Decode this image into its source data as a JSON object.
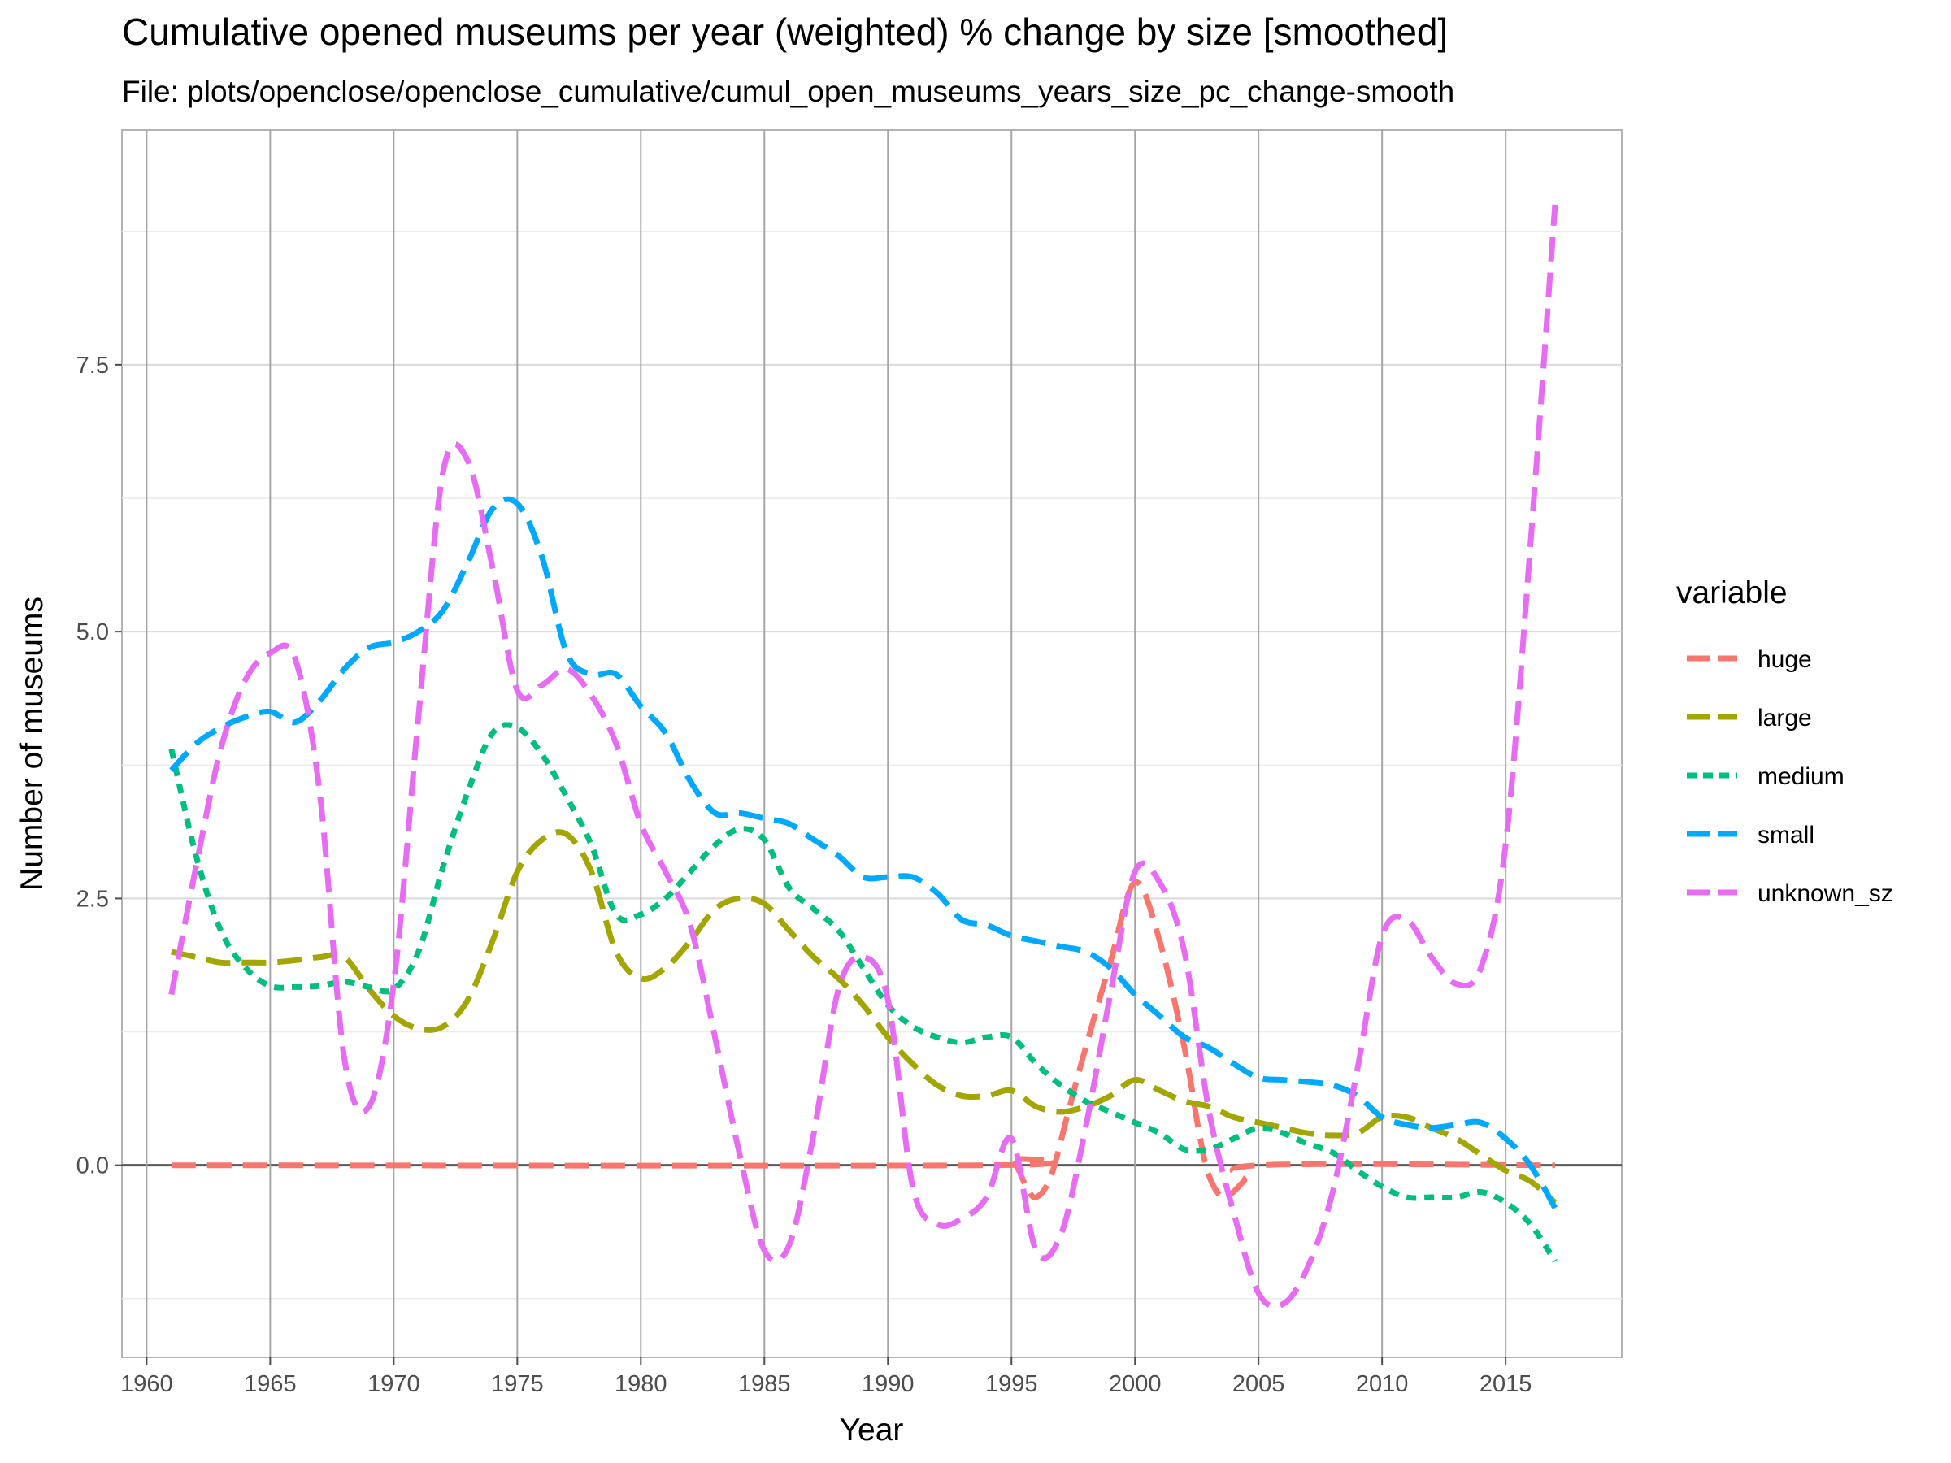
{
  "chart_data": {
    "type": "line",
    "title": "Cumulative opened museums per year (weighted) % change by size [smoothed]",
    "subtitle": "File: plots/openclose/openclose_cumulative/cumul_open_museums_years_size_pc_change-smooth",
    "xlabel": "Year",
    "ylabel": "Number of museums",
    "xlim": [
      1959,
      2019.7
    ],
    "ylim": [
      -1.8,
      9.7
    ],
    "x_ticks": [
      1960,
      1965,
      1970,
      1975,
      1980,
      1985,
      1990,
      1995,
      2000,
      2005,
      2010,
      2015
    ],
    "y_ticks": [
      0.0,
      2.5,
      5.0,
      7.5
    ],
    "y_tick_labels": [
      "0.0",
      "2.5",
      "5.0",
      "7.5"
    ],
    "grid": true,
    "legend": {
      "title": "variable",
      "position": "right"
    },
    "series": [
      {
        "name": "huge",
        "color": "#F8766D",
        "dash": "long",
        "points": [
          [
            1961,
            0
          ],
          [
            1994,
            0
          ],
          [
            1995,
            0.05
          ],
          [
            1995.6,
            -0.2
          ],
          [
            1996,
            -0.3
          ],
          [
            1996.6,
            -0.1
          ],
          [
            1997.3,
            0.5
          ],
          [
            1998,
            1.1
          ],
          [
            1999,
            1.9
          ],
          [
            2000,
            2.65
          ],
          [
            2001,
            2.1
          ],
          [
            2002,
            1.1
          ],
          [
            2002.6,
            0.3
          ],
          [
            2003,
            -0.1
          ],
          [
            2003.6,
            -0.3
          ],
          [
            2004.4,
            -0.15
          ],
          [
            2005,
            0
          ],
          [
            2017,
            0
          ]
        ]
      },
      {
        "name": "large",
        "color": "#A3A500",
        "dash": "long",
        "points": [
          [
            1961,
            2.0
          ],
          [
            1962,
            1.95
          ],
          [
            1963,
            1.9
          ],
          [
            1964,
            1.9
          ],
          [
            1965,
            1.9
          ],
          [
            1966,
            1.92
          ],
          [
            1967,
            1.95
          ],
          [
            1968,
            1.95
          ],
          [
            1969,
            1.65
          ],
          [
            1970,
            1.4
          ],
          [
            1971,
            1.28
          ],
          [
            1972,
            1.3
          ],
          [
            1973,
            1.55
          ],
          [
            1974,
            2.1
          ],
          [
            1975,
            2.75
          ],
          [
            1976,
            3.05
          ],
          [
            1977,
            3.1
          ],
          [
            1978,
            2.75
          ],
          [
            1979,
            2.0
          ],
          [
            1980,
            1.75
          ],
          [
            1981,
            1.85
          ],
          [
            1982,
            2.1
          ],
          [
            1983,
            2.4
          ],
          [
            1984,
            2.5
          ],
          [
            1985,
            2.45
          ],
          [
            1986,
            2.2
          ],
          [
            1987,
            1.95
          ],
          [
            1988,
            1.75
          ],
          [
            1989,
            1.5
          ],
          [
            1990,
            1.2
          ],
          [
            1991,
            0.95
          ],
          [
            1992,
            0.75
          ],
          [
            1993,
            0.65
          ],
          [
            1994,
            0.65
          ],
          [
            1995,
            0.7
          ],
          [
            1996,
            0.55
          ],
          [
            1997,
            0.5
          ],
          [
            1998,
            0.55
          ],
          [
            1999,
            0.65
          ],
          [
            2000,
            0.8
          ],
          [
            2001,
            0.7
          ],
          [
            2002,
            0.6
          ],
          [
            2003,
            0.55
          ],
          [
            2004,
            0.45
          ],
          [
            2005,
            0.4
          ],
          [
            2006,
            0.35
          ],
          [
            2007,
            0.3
          ],
          [
            2008,
            0.28
          ],
          [
            2009,
            0.3
          ],
          [
            2010,
            0.45
          ],
          [
            2011,
            0.45
          ],
          [
            2012,
            0.35
          ],
          [
            2013,
            0.25
          ],
          [
            2014,
            0.1
          ],
          [
            2015,
            -0.05
          ],
          [
            2016,
            -0.15
          ],
          [
            2017,
            -0.35
          ]
        ]
      },
      {
        "name": "medium",
        "color": "#00BF7D",
        "dash": "short",
        "points": [
          [
            1961,
            3.9
          ],
          [
            1962,
            2.9
          ],
          [
            1963,
            2.2
          ],
          [
            1964,
            1.85
          ],
          [
            1965,
            1.68
          ],
          [
            1966,
            1.67
          ],
          [
            1967,
            1.68
          ],
          [
            1968,
            1.72
          ],
          [
            1969,
            1.67
          ],
          [
            1970,
            1.65
          ],
          [
            1971,
            2.0
          ],
          [
            1972,
            2.8
          ],
          [
            1973,
            3.5
          ],
          [
            1974,
            4.05
          ],
          [
            1975,
            4.1
          ],
          [
            1976,
            3.85
          ],
          [
            1977,
            3.45
          ],
          [
            1978,
            3.0
          ],
          [
            1979,
            2.35
          ],
          [
            1980,
            2.35
          ],
          [
            1981,
            2.5
          ],
          [
            1982,
            2.75
          ],
          [
            1983,
            3.0
          ],
          [
            1984,
            3.15
          ],
          [
            1985,
            3.05
          ],
          [
            1986,
            2.6
          ],
          [
            1987,
            2.4
          ],
          [
            1988,
            2.2
          ],
          [
            1989,
            1.85
          ],
          [
            1990,
            1.5
          ],
          [
            1991,
            1.3
          ],
          [
            1992,
            1.2
          ],
          [
            1993,
            1.15
          ],
          [
            1994,
            1.2
          ],
          [
            1995,
            1.2
          ],
          [
            1996,
            0.95
          ],
          [
            1997,
            0.75
          ],
          [
            1998,
            0.6
          ],
          [
            1999,
            0.5
          ],
          [
            2000,
            0.4
          ],
          [
            2001,
            0.3
          ],
          [
            2002,
            0.15
          ],
          [
            2003,
            0.15
          ],
          [
            2004,
            0.25
          ],
          [
            2005,
            0.35
          ],
          [
            2006,
            0.3
          ],
          [
            2007,
            0.2
          ],
          [
            2008,
            0.12
          ],
          [
            2009,
            -0.05
          ],
          [
            2010,
            -0.2
          ],
          [
            2011,
            -0.3
          ],
          [
            2012,
            -0.3
          ],
          [
            2013,
            -0.3
          ],
          [
            2014,
            -0.25
          ],
          [
            2015,
            -0.35
          ],
          [
            2016,
            -0.55
          ],
          [
            2017,
            -0.9
          ]
        ]
      },
      {
        "name": "small",
        "color": "#00A9FF",
        "dash": "long",
        "points": [
          [
            1961,
            3.7
          ],
          [
            1962,
            3.95
          ],
          [
            1963,
            4.1
          ],
          [
            1964,
            4.2
          ],
          [
            1965,
            4.25
          ],
          [
            1966,
            4.15
          ],
          [
            1967,
            4.35
          ],
          [
            1968,
            4.65
          ],
          [
            1969,
            4.85
          ],
          [
            1970,
            4.9
          ],
          [
            1971,
            5.0
          ],
          [
            1972,
            5.2
          ],
          [
            1973,
            5.65
          ],
          [
            1974,
            6.15
          ],
          [
            1975,
            6.2
          ],
          [
            1976,
            5.7
          ],
          [
            1977,
            4.8
          ],
          [
            1978,
            4.6
          ],
          [
            1979,
            4.6
          ],
          [
            1980,
            4.3
          ],
          [
            1981,
            4.05
          ],
          [
            1982,
            3.6
          ],
          [
            1983,
            3.3
          ],
          [
            1984,
            3.3
          ],
          [
            1985,
            3.25
          ],
          [
            1986,
            3.2
          ],
          [
            1987,
            3.05
          ],
          [
            1988,
            2.9
          ],
          [
            1989,
            2.7
          ],
          [
            1990,
            2.7
          ],
          [
            1991,
            2.7
          ],
          [
            1992,
            2.55
          ],
          [
            1993,
            2.3
          ],
          [
            1994,
            2.25
          ],
          [
            1995,
            2.15
          ],
          [
            1996,
            2.1
          ],
          [
            1997,
            2.05
          ],
          [
            1998,
            2.0
          ],
          [
            1999,
            1.85
          ],
          [
            2000,
            1.6
          ],
          [
            2001,
            1.4
          ],
          [
            2002,
            1.2
          ],
          [
            2003,
            1.1
          ],
          [
            2004,
            0.95
          ],
          [
            2005,
            0.82
          ],
          [
            2006,
            0.8
          ],
          [
            2007,
            0.78
          ],
          [
            2008,
            0.75
          ],
          [
            2009,
            0.65
          ],
          [
            2010,
            0.45
          ],
          [
            2011,
            0.38
          ],
          [
            2012,
            0.35
          ],
          [
            2013,
            0.38
          ],
          [
            2014,
            0.4
          ],
          [
            2015,
            0.25
          ],
          [
            2016,
            0
          ],
          [
            2017,
            -0.4
          ]
        ]
      },
      {
        "name": "unknown_sz",
        "color": "#E76BF3",
        "dash": "long",
        "points": [
          [
            1961,
            1.6
          ],
          [
            1962,
            2.8
          ],
          [
            1963,
            3.9
          ],
          [
            1964,
            4.55
          ],
          [
            1965,
            4.8
          ],
          [
            1966,
            4.75
          ],
          [
            1967,
            3.5
          ],
          [
            1968,
            1.0
          ],
          [
            1969,
            0.55
          ],
          [
            1970,
            1.7
          ],
          [
            1971,
            4.2
          ],
          [
            1972,
            6.5
          ],
          [
            1973,
            6.6
          ],
          [
            1974,
            5.6
          ],
          [
            1975,
            4.45
          ],
          [
            1976,
            4.5
          ],
          [
            1977,
            4.65
          ],
          [
            1978,
            4.4
          ],
          [
            1979,
            3.95
          ],
          [
            1980,
            3.2
          ],
          [
            1981,
            2.75
          ],
          [
            1982,
            2.25
          ],
          [
            1983,
            1.2
          ],
          [
            1984,
            0.1
          ],
          [
            1985,
            -0.8
          ],
          [
            1986,
            -0.75
          ],
          [
            1987,
            0.3
          ],
          [
            1988,
            1.65
          ],
          [
            1989,
            1.95
          ],
          [
            1990,
            1.55
          ],
          [
            1991,
            -0.2
          ],
          [
            1992,
            -0.55
          ],
          [
            1993,
            -0.5
          ],
          [
            1994,
            -0.3
          ],
          [
            1995,
            0.25
          ],
          [
            1996,
            -0.8
          ],
          [
            1997,
            -0.65
          ],
          [
            1998,
            0.35
          ],
          [
            1999,
            1.6
          ],
          [
            2000,
            2.75
          ],
          [
            2001,
            2.65
          ],
          [
            2002,
            2.0
          ],
          [
            2003,
            0.5
          ],
          [
            2004,
            -0.45
          ],
          [
            2005,
            -1.2
          ],
          [
            2006,
            -1.3
          ],
          [
            2007,
            -0.95
          ],
          [
            2008,
            -0.25
          ],
          [
            2009,
            0.9
          ],
          [
            2010,
            2.15
          ],
          [
            2011,
            2.3
          ],
          [
            2012,
            1.95
          ],
          [
            2013,
            1.7
          ],
          [
            2014,
            1.85
          ],
          [
            2015,
            3.0
          ],
          [
            2016,
            5.8
          ],
          [
            2017,
            9.0
          ]
        ]
      }
    ]
  }
}
